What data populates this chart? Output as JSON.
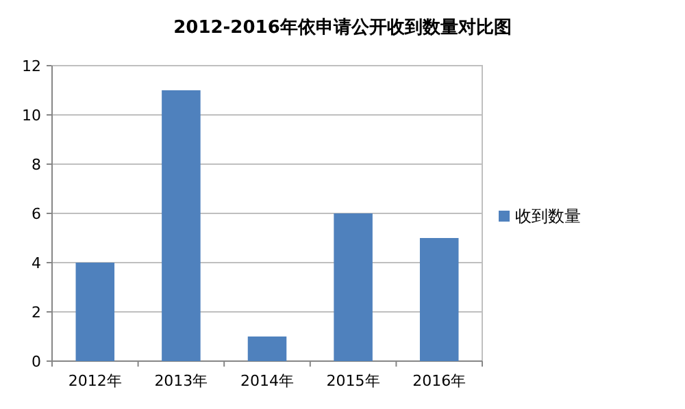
{
  "chart_data": {
    "type": "bar",
    "title": "2012-2016年依申请公开收到数量对比图",
    "categories": [
      "2012年",
      "2013年",
      "2014年",
      "2015年",
      "2016年"
    ],
    "series": [
      {
        "name": "收到数量",
        "color": "#4f81bd",
        "values": [
          4,
          11,
          1,
          6,
          5
        ]
      }
    ],
    "ylim": [
      0,
      12
    ],
    "yticks": [
      0,
      2,
      4,
      6,
      8,
      10,
      12
    ],
    "grid": "y",
    "legend": "right"
  }
}
